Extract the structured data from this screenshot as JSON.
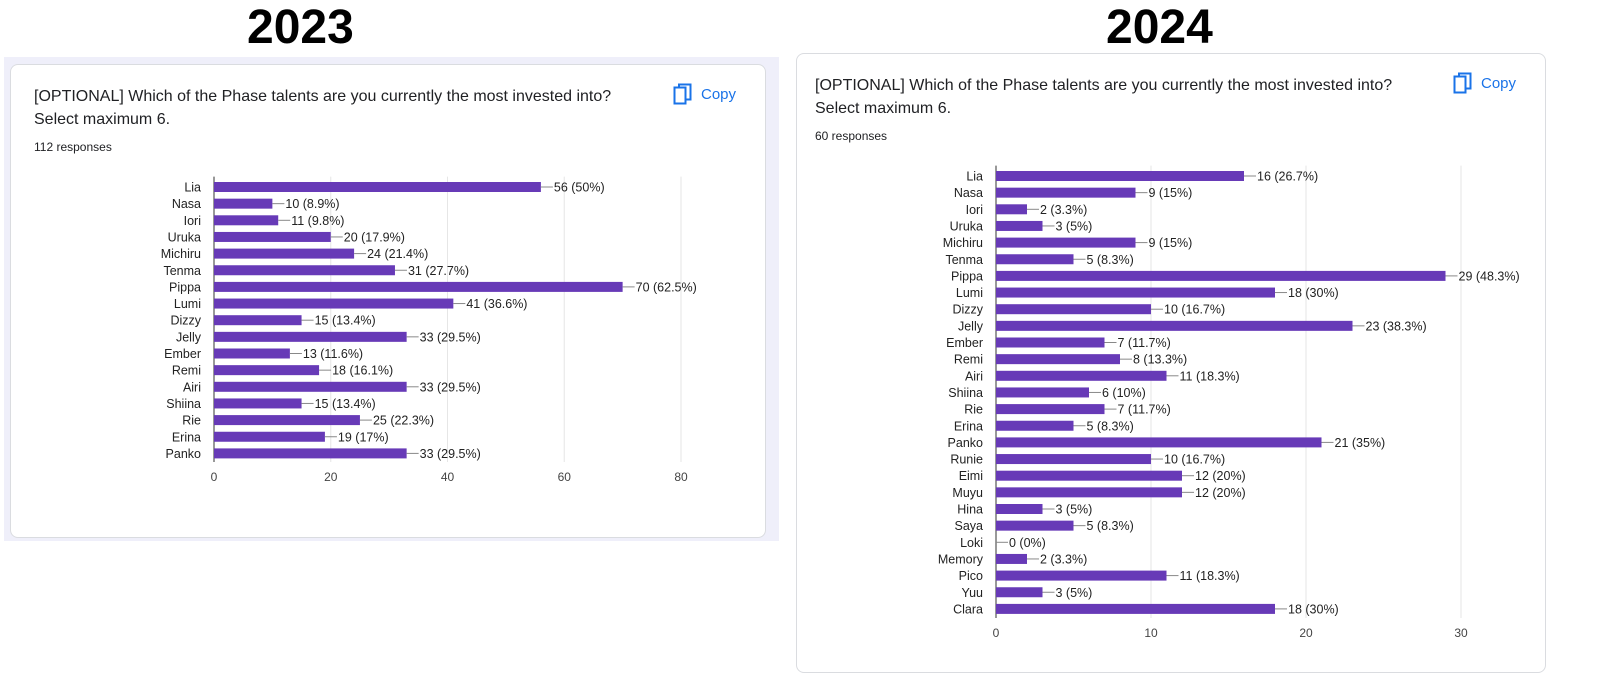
{
  "headers": {
    "left": "2023",
    "right": "2024"
  },
  "copy_label": "Copy",
  "colors": {
    "bar": "#673ab7",
    "accent": "#1a73e8",
    "grid": "#e6e6e6",
    "page_bg_left": "#efeffa"
  },
  "chart_data": [
    {
      "type": "bar",
      "orientation": "horizontal",
      "question_line1": "[OPTIONAL] Which of the Phase talents are you currently the most invested into?",
      "question_line2": "Select maximum 6.",
      "responses": "112 responses",
      "categories": [
        "Lia",
        "Nasa",
        "Iori",
        "Uruka",
        "Michiru",
        "Tenma",
        "Pippa",
        "Lumi",
        "Dizzy",
        "Jelly",
        "Ember",
        "Remi",
        "Airi",
        "Shiina",
        "Rie",
        "Erina",
        "Panko"
      ],
      "values": [
        56,
        10,
        11,
        20,
        24,
        31,
        70,
        41,
        15,
        33,
        13,
        18,
        33,
        15,
        25,
        19,
        33
      ],
      "data_labels": [
        "56 (50%)",
        "10 (8.9%)",
        "11 (9.8%)",
        "20 (17.9%)",
        "24 (21.4%)",
        "31 (27.7%)",
        "70 (62.5%)",
        "41 (36.6%)",
        "15 (13.4%)",
        "33 (29.5%)",
        "13 (11.6%)",
        "18 (16.1%)",
        "33 (29.5%)",
        "15 (13.4%)",
        "25 (22.3%)",
        "19 (17%)",
        "33 (29.5%)"
      ],
      "xlim": [
        0,
        80
      ],
      "xticks": [
        0,
        20,
        40,
        60,
        80
      ],
      "grid": true
    },
    {
      "type": "bar",
      "orientation": "horizontal",
      "question_line1": "[OPTIONAL] Which of the Phase talents are you currently the most invested into?",
      "question_line2": "Select maximum 6.",
      "responses": "60 responses",
      "categories": [
        "Lia",
        "Nasa",
        "Iori",
        "Uruka",
        "Michiru",
        "Tenma",
        "Pippa",
        "Lumi",
        "Dizzy",
        "Jelly",
        "Ember",
        "Remi",
        "Airi",
        "Shiina",
        "Rie",
        "Erina",
        "Panko",
        "Runie",
        "Eimi",
        "Muyu",
        "Hina",
        "Saya",
        "Loki",
        "Memory",
        "Pico",
        "Yuu",
        "Clara"
      ],
      "values": [
        16,
        9,
        2,
        3,
        9,
        5,
        29,
        18,
        10,
        23,
        7,
        8,
        11,
        6,
        7,
        5,
        21,
        10,
        12,
        12,
        3,
        5,
        0,
        2,
        11,
        3,
        18
      ],
      "data_labels": [
        "16 (26.7%)",
        "9 (15%)",
        "2 (3.3%)",
        "3 (5%)",
        "9 (15%)",
        "5 (8.3%)",
        "29 (48.3%)",
        "18 (30%)",
        "10 (16.7%)",
        "23 (38.3%)",
        "7 (11.7%)",
        "8 (13.3%)",
        "11 (18.3%)",
        "6 (10%)",
        "7 (11.7%)",
        "5 (8.3%)",
        "21 (35%)",
        "10 (16.7%)",
        "12 (20%)",
        "12 (20%)",
        "3 (5%)",
        "5 (8.3%)",
        "0 (0%)",
        "2 (3.3%)",
        "11 (18.3%)",
        "3 (5%)",
        "18 (30%)"
      ],
      "xlim": [
        0,
        30
      ],
      "xticks": [
        0,
        10,
        20,
        30
      ],
      "grid": true
    }
  ]
}
